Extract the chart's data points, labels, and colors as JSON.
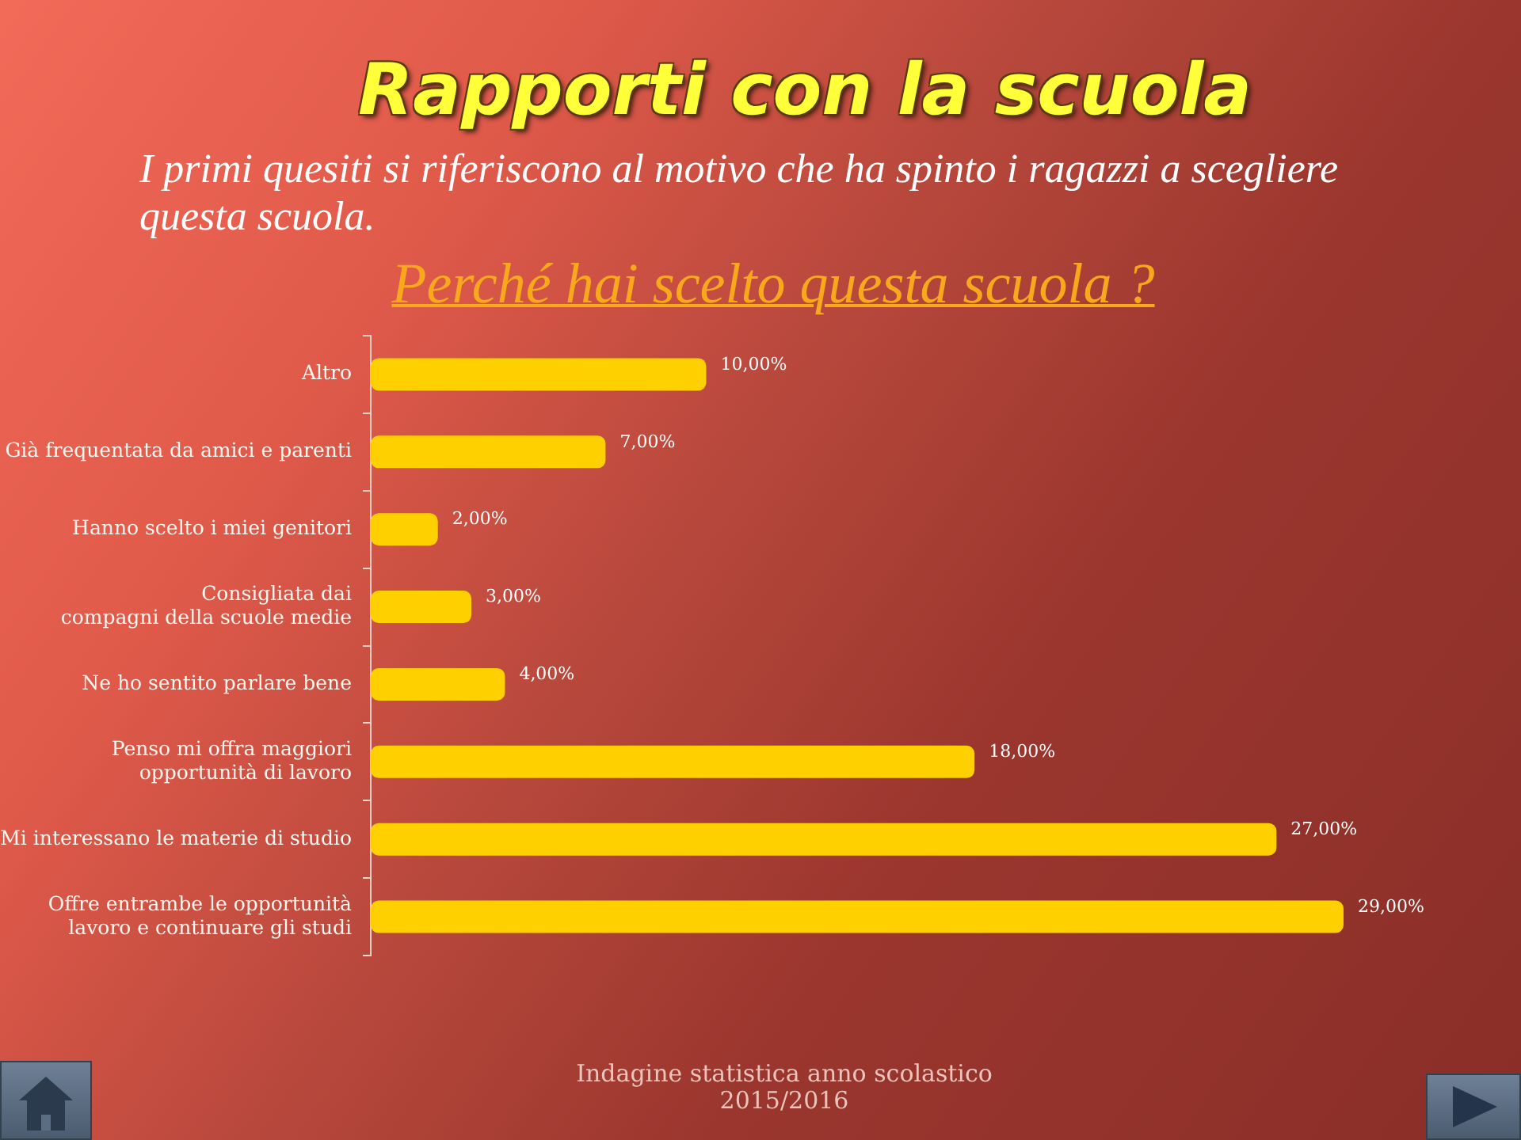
{
  "chart_data": {
    "type": "bar",
    "orientation": "horizontal",
    "title": "Rapporti con la scuola",
    "subtitle": "I primi quesiti si riferiscono al motivo che ha spinto i ragazzi a scegliere questa scuola.",
    "annotations": [
      "Perché hai scelto questa scuola ?",
      "Indagine statistica anno scolastico\n2015/2016"
    ],
    "categories": [
      "Altro",
      "Già frequentata da amici e parenti",
      "Hanno scelto i miei genitori",
      "Consigliata dai\ncompagni della scuole medie",
      "Ne ho sentito parlare bene",
      "Penso mi offra maggiori\nopportunità di lavoro",
      "Mi interessano le materie di studio",
      "Offre entrambe le opportunità\nlavoro e continuare gli studi"
    ],
    "values": [
      10,
      7,
      2,
      3,
      4,
      18,
      27,
      29
    ],
    "value_labels": [
      "10,00%",
      "7,00%",
      "2,00%",
      "3,00%",
      "4,00%",
      "18,00%",
      "27,00%",
      "29,00%"
    ],
    "color": "#ffd000",
    "tick_labels": "y"
  }
}
